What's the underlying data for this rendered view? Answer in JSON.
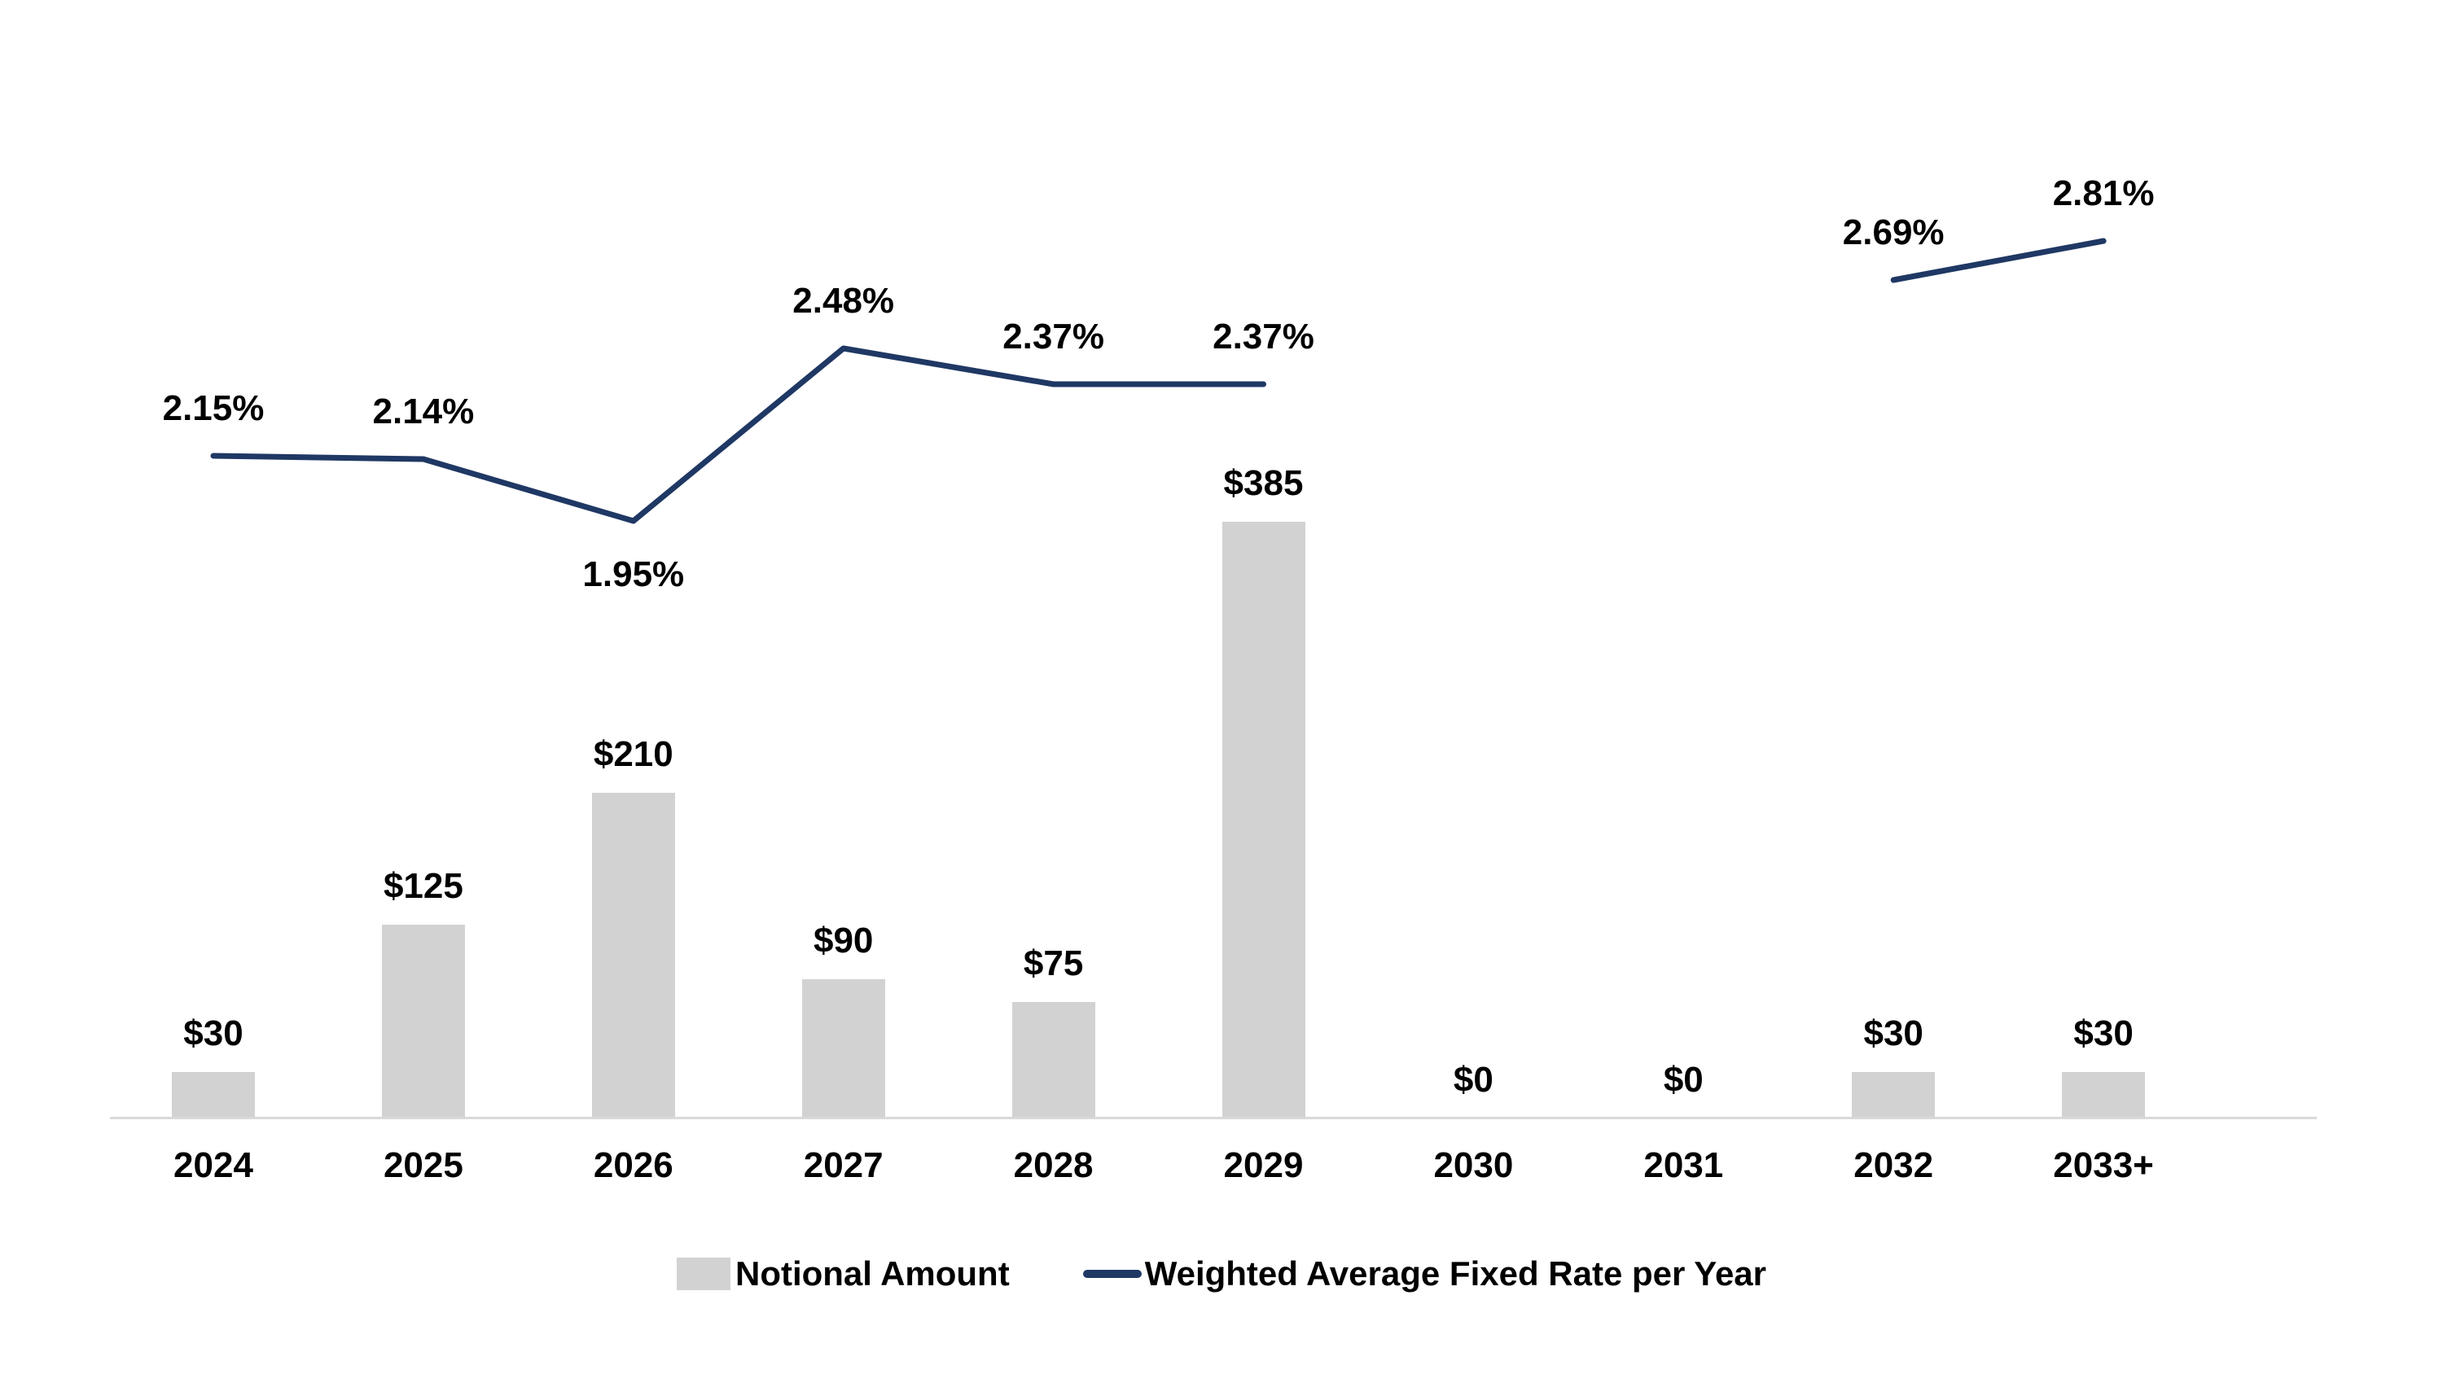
{
  "chart_data": {
    "type": "bar+line",
    "title": "",
    "xlabel": "",
    "ylabel": "",
    "categories": [
      "2024",
      "2025",
      "2026",
      "2027",
      "2028",
      "2029",
      "2030",
      "2031",
      "2032",
      "2033+"
    ],
    "series": [
      {
        "name": "Notional Amount",
        "chart_type": "bar",
        "color": "#d2d2d2",
        "values": [
          30,
          125,
          210,
          90,
          75,
          385,
          0,
          0,
          30,
          30
        ],
        "data_labels": [
          "$30",
          "$125",
          "$210",
          "$90",
          "$75",
          "$385",
          "$0",
          "$0",
          "$30",
          "$30"
        ]
      },
      {
        "name": "Weighted Average Fixed Rate per Year",
        "chart_type": "line",
        "color": "#1f3864",
        "values": [
          2.15,
          2.14,
          1.95,
          2.48,
          2.37,
          2.37,
          null,
          null,
          2.69,
          2.81
        ],
        "data_labels": [
          "2.15%",
          "2.14%",
          "1.95%",
          "2.48%",
          "2.37%",
          "2.37%",
          null,
          null,
          "2.69%",
          "2.81%"
        ],
        "label_positions": [
          "above",
          "above",
          "below",
          "above",
          "above",
          "above",
          null,
          null,
          "above",
          "above"
        ]
      }
    ],
    "legend_position": "bottom",
    "gridlines": false,
    "y_axis_visible": false,
    "x_axis_visible": true,
    "bar_value_range": [
      0,
      385
    ],
    "rate_value_range": [
      1.95,
      2.81
    ]
  },
  "colors": {
    "background": "#ffffff",
    "bar_fill": "#d2d2d2",
    "line_stroke": "#1f3864",
    "axis_line": "#d9d9d9",
    "label_text": "#000000"
  }
}
